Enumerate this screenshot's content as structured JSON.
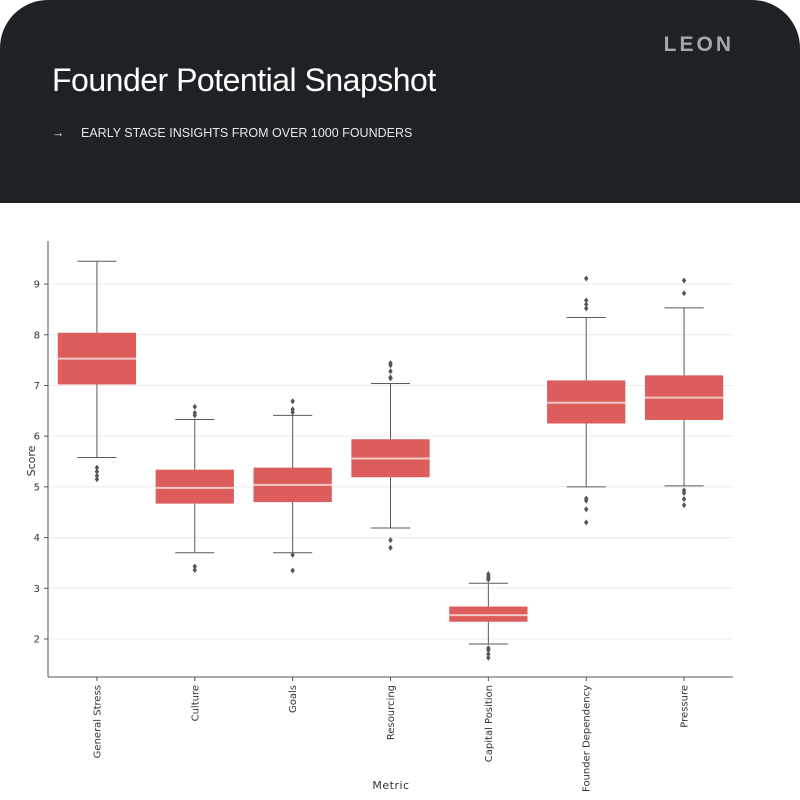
{
  "header": {
    "logo": "LEON",
    "title": "Founder Potential Snapshot",
    "arrow": "→",
    "subtitle": "EARLY STAGE INSIGHTS FROM OVER 1000 FOUNDERS"
  },
  "chart_data": {
    "type": "box",
    "xlabel": "Metric",
    "ylabel": "Score",
    "ylim": [
      1.25,
      9.85
    ],
    "yticks": [
      2,
      3,
      4,
      5,
      6,
      7,
      8,
      9
    ],
    "grid": true,
    "box_color": "#dc5d5c",
    "median_color": "#f2c9c4",
    "categories": [
      "General Stress",
      "Culture",
      "Goals",
      "Resourcing",
      "Capital Position",
      "Founder Dependency",
      "Pressure"
    ],
    "boxes": [
      {
        "whisker_low": 5.58,
        "q1": 7.02,
        "median": 7.53,
        "q3": 8.04,
        "whisker_high": 9.45,
        "outliers": [
          5.38,
          5.3,
          5.22,
          5.15
        ]
      },
      {
        "whisker_low": 3.7,
        "q1": 4.67,
        "median": 4.98,
        "q3": 5.34,
        "whisker_high": 6.33,
        "outliers": [
          6.58,
          6.46,
          6.41,
          3.43,
          3.36
        ]
      },
      {
        "whisker_low": 3.7,
        "q1": 4.7,
        "median": 5.04,
        "q3": 5.38,
        "whisker_high": 6.41,
        "outliers": [
          6.69,
          6.53,
          6.47,
          3.66,
          3.35
        ]
      },
      {
        "whisker_low": 4.19,
        "q1": 5.19,
        "median": 5.56,
        "q3": 5.94,
        "whisker_high": 7.04,
        "outliers": [
          7.44,
          7.4,
          7.28,
          7.16,
          7.14,
          3.95,
          3.8
        ]
      },
      {
        "whisker_low": 1.9,
        "q1": 2.34,
        "median": 2.47,
        "q3": 2.64,
        "whisker_high": 3.1,
        "outliers": [
          3.28,
          3.24,
          3.2,
          3.17,
          1.82,
          1.78,
          1.7,
          1.63
        ]
      },
      {
        "whisker_low": 5.0,
        "q1": 6.25,
        "median": 6.66,
        "q3": 7.1,
        "whisker_high": 8.34,
        "outliers": [
          9.11,
          8.68,
          8.6,
          8.52,
          4.77,
          4.73,
          4.56,
          4.3
        ]
      },
      {
        "whisker_low": 5.02,
        "q1": 6.32,
        "median": 6.76,
        "q3": 7.2,
        "whisker_high": 8.53,
        "outliers": [
          9.07,
          8.82,
          4.93,
          4.88,
          4.76,
          4.64
        ]
      }
    ]
  }
}
